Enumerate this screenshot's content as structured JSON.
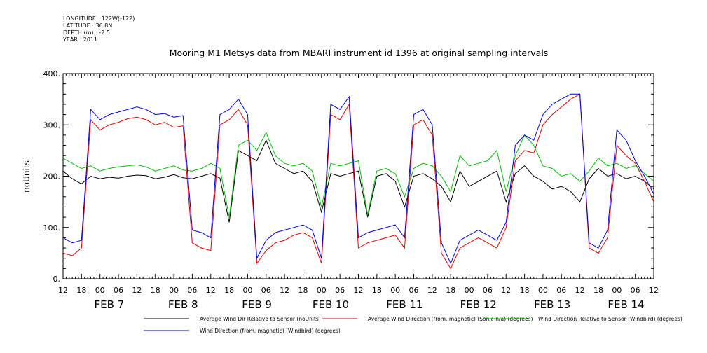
{
  "metadata": {
    "longitude": "LONGITUDE : 122W(-122)",
    "latitude": "LATITUDE : 36.8N",
    "depth": "DEPTH (m) : -2.5",
    "year": "YEAR : 2011"
  },
  "chart_data": {
    "type": "line",
    "title": "Mooring M1 Metsys data from MBARI instrument id 1396 at original sampling intervals",
    "ylabel": "noUnits",
    "xlabel": "",
    "ylim": [
      0,
      400
    ],
    "y_ticks": [
      "0.",
      "100.",
      "200.",
      "300.",
      "400."
    ],
    "x_range_hours": [
      -12,
      180
    ],
    "x_hour_ticks": [
      "12",
      "18",
      "00",
      "06",
      "12",
      "18",
      "00",
      "06",
      "12",
      "18",
      "00",
      "06",
      "12",
      "18",
      "00",
      "06",
      "12",
      "18",
      "00",
      "06",
      "12",
      "18",
      "00",
      "06",
      "12",
      "18",
      "00",
      "06",
      "12",
      "18",
      "00",
      "06",
      "12"
    ],
    "x_day_labels": [
      "FEB  7",
      "FEB  8",
      "FEB  9",
      "FEB 10",
      "FEB 11",
      "FEB 12",
      "FEB 13",
      "FEB 14"
    ],
    "grid": false,
    "legend_position": "bottom",
    "series": [
      {
        "name": "Average Wind Dir Relative to Sensor (noUnits)",
        "color": "#000000",
        "x": [
          -12,
          -9,
          -6,
          -3,
          0,
          3,
          6,
          9,
          12,
          15,
          18,
          21,
          24,
          27,
          30,
          33,
          36,
          39,
          42,
          45,
          48,
          51,
          54,
          57,
          60,
          63,
          66,
          69,
          72,
          75,
          78,
          81,
          84,
          87,
          90,
          93,
          96,
          99,
          102,
          105,
          108,
          111,
          114,
          117,
          120,
          123,
          126,
          129,
          132,
          135,
          138,
          141,
          144,
          147,
          150,
          153,
          156,
          159,
          162,
          165,
          168,
          171,
          174,
          177,
          180
        ],
        "values": [
          210,
          195,
          185,
          200,
          195,
          198,
          196,
          200,
          202,
          201,
          195,
          198,
          203,
          197,
          195,
          200,
          205,
          196,
          110,
          250,
          240,
          230,
          270,
          225,
          215,
          205,
          210,
          190,
          130,
          205,
          200,
          205,
          210,
          120,
          200,
          205,
          190,
          140,
          200,
          205,
          195,
          180,
          150,
          210,
          180,
          190,
          200,
          210,
          150,
          205,
          220,
          200,
          190,
          175,
          180,
          170,
          150,
          195,
          215,
          200,
          205,
          195,
          200,
          190,
          175
        ]
      },
      {
        "name": "Average Wind Direction (from, magnetic) (Sonic-n/a) (degrees)",
        "color": "#e00000",
        "x": [
          -12,
          -9,
          -6,
          -3,
          0,
          3,
          6,
          9,
          12,
          15,
          18,
          21,
          24,
          27,
          30,
          33,
          36,
          39,
          42,
          45,
          48,
          51,
          54,
          57,
          60,
          63,
          66,
          69,
          72,
          75,
          78,
          81,
          84,
          87,
          90,
          93,
          96,
          99,
          102,
          105,
          108,
          111,
          114,
          117,
          120,
          123,
          126,
          129,
          132,
          135,
          138,
          141,
          144,
          147,
          150,
          153,
          156,
          159,
          162,
          165,
          168,
          171,
          174,
          177,
          180
        ],
        "values": [
          50,
          45,
          60,
          310,
          290,
          300,
          305,
          312,
          315,
          310,
          300,
          305,
          295,
          298,
          70,
          60,
          55,
          300,
          310,
          330,
          300,
          30,
          55,
          70,
          75,
          85,
          90,
          80,
          30,
          320,
          310,
          340,
          60,
          70,
          75,
          80,
          85,
          60,
          300,
          310,
          280,
          50,
          20,
          60,
          70,
          80,
          70,
          60,
          100,
          230,
          250,
          245,
          300,
          320,
          335,
          350,
          360,
          60,
          50,
          80,
          260,
          240,
          225,
          190,
          150
        ]
      },
      {
        "name": "Wind Direction Relative to Sensor (Windbird) (degrees)",
        "color": "#00c000",
        "x": [
          -12,
          -9,
          -6,
          -3,
          0,
          3,
          6,
          9,
          12,
          15,
          18,
          21,
          24,
          27,
          30,
          33,
          36,
          39,
          42,
          45,
          48,
          51,
          54,
          57,
          60,
          63,
          66,
          69,
          72,
          75,
          78,
          81,
          84,
          87,
          90,
          93,
          96,
          99,
          102,
          105,
          108,
          111,
          114,
          117,
          120,
          123,
          126,
          129,
          132,
          135,
          138,
          141,
          144,
          147,
          150,
          153,
          156,
          159,
          162,
          165,
          168,
          171,
          174,
          177,
          180
        ],
        "values": [
          235,
          225,
          215,
          220,
          210,
          215,
          218,
          220,
          222,
          218,
          210,
          215,
          220,
          212,
          210,
          215,
          225,
          215,
          120,
          260,
          270,
          250,
          285,
          240,
          225,
          220,
          225,
          210,
          140,
          225,
          220,
          225,
          230,
          125,
          210,
          215,
          205,
          160,
          215,
          225,
          220,
          200,
          170,
          240,
          220,
          225,
          230,
          250,
          170,
          240,
          280,
          260,
          220,
          215,
          200,
          205,
          190,
          210,
          235,
          220,
          225,
          215,
          220,
          205,
          190
        ]
      },
      {
        "name": "Wind Direction (from, magnetic) (Windbird) (degrees)",
        "color": "#0000e0",
        "x": [
          -12,
          -9,
          -6,
          -3,
          0,
          3,
          6,
          9,
          12,
          15,
          18,
          21,
          24,
          27,
          30,
          33,
          36,
          39,
          42,
          45,
          48,
          51,
          54,
          57,
          60,
          63,
          66,
          69,
          72,
          75,
          78,
          81,
          84,
          87,
          90,
          93,
          96,
          99,
          102,
          105,
          108,
          111,
          114,
          117,
          120,
          123,
          126,
          129,
          132,
          135,
          138,
          141,
          144,
          147,
          150,
          153,
          156,
          159,
          162,
          165,
          168,
          171,
          174,
          177,
          180
        ],
        "values": [
          80,
          70,
          75,
          330,
          310,
          320,
          325,
          330,
          335,
          330,
          320,
          322,
          315,
          318,
          95,
          90,
          80,
          320,
          330,
          350,
          320,
          40,
          75,
          90,
          95,
          100,
          105,
          95,
          40,
          340,
          330,
          355,
          80,
          90,
          95,
          100,
          105,
          80,
          320,
          330,
          300,
          70,
          30,
          75,
          85,
          95,
          85,
          75,
          110,
          260,
          280,
          270,
          320,
          340,
          350,
          360,
          360,
          70,
          60,
          95,
          290,
          270,
          230,
          200,
          165
        ]
      }
    ]
  }
}
